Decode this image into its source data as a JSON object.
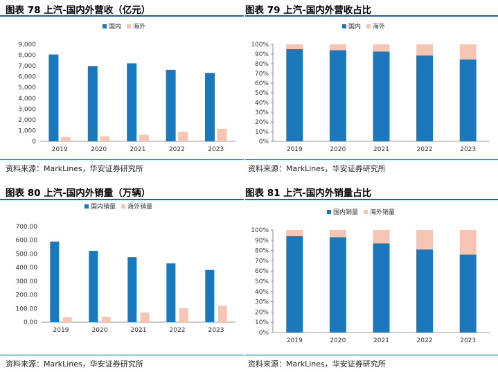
{
  "colors": {
    "domestic": "#1979BC",
    "overseas": "#F7C5B3",
    "rule": "#1b5faa"
  },
  "source_text": "资料来源：MarkLines，华安证券研究所",
  "chart_data": [
    {
      "id": "c78",
      "type": "bar",
      "title": "图表 78 上汽-国内外营收（亿元）",
      "categories": [
        "2019",
        "2020",
        "2021",
        "2022",
        "2023"
      ],
      "series": [
        {
          "name": "国内",
          "values": [
            8060,
            6990,
            7240,
            6630,
            6350
          ]
        },
        {
          "name": "海外",
          "values": [
            410,
            470,
            600,
            880,
            1170
          ]
        }
      ],
      "ylim": [
        0,
        9000
      ],
      "yticks": [
        "0",
        "1,000",
        "2,000",
        "3,000",
        "4,000",
        "5,000",
        "6,000",
        "7,000",
        "8,000",
        "9,000"
      ],
      "legend": "top-center",
      "grid": false
    },
    {
      "id": "c79",
      "type": "bar",
      "stacked": true,
      "title": "图表 79 上汽-国内外营收占比",
      "categories": [
        "2019",
        "2020",
        "2021",
        "2022",
        "2023"
      ],
      "series": [
        {
          "name": "国内",
          "values": [
            95,
            94,
            92.5,
            88.5,
            84.5
          ]
        },
        {
          "name": "海外",
          "values": [
            5,
            6,
            7.5,
            11.5,
            15.5
          ]
        }
      ],
      "ylim": [
        0,
        100
      ],
      "yticks": [
        "0%",
        "10%",
        "20%",
        "30%",
        "40%",
        "50%",
        "60%",
        "70%",
        "80%",
        "90%",
        "100%"
      ],
      "legend": "top-center",
      "grid": false
    },
    {
      "id": "c80",
      "type": "bar",
      "title": "图表 80 上汽-国内外销量（万辆）",
      "categories": [
        "2019",
        "2020",
        "2021",
        "2022",
        "2023"
      ],
      "series": [
        {
          "name": "国内销量",
          "values": [
            590,
            522,
            476,
            430,
            382
          ]
        },
        {
          "name": "海外销量",
          "values": [
            35,
            39,
            70,
            102,
            120
          ]
        }
      ],
      "ylim": [
        0,
        700
      ],
      "yticks": [
        "0.00",
        "100.00",
        "200.00",
        "300.00",
        "400.00",
        "500.00",
        "600.00",
        "700.00"
      ],
      "legend": "top-center",
      "grid": false
    },
    {
      "id": "c81",
      "type": "bar",
      "stacked": true,
      "title": "图表 81 上汽-国内外销量占比",
      "categories": [
        "2019",
        "2020",
        "2021",
        "2022",
        "2023"
      ],
      "series": [
        {
          "name": "国内销量",
          "values": [
            94,
            93,
            87,
            81,
            76
          ]
        },
        {
          "name": "海外销量",
          "values": [
            6,
            7,
            13,
            19,
            24
          ]
        }
      ],
      "ylim": [
        0,
        100
      ],
      "yticks": [
        "0%",
        "10%",
        "20%",
        "30%",
        "40%",
        "50%",
        "60%",
        "70%",
        "80%",
        "90%",
        "100%"
      ],
      "legend": "top-center",
      "grid": false
    }
  ]
}
